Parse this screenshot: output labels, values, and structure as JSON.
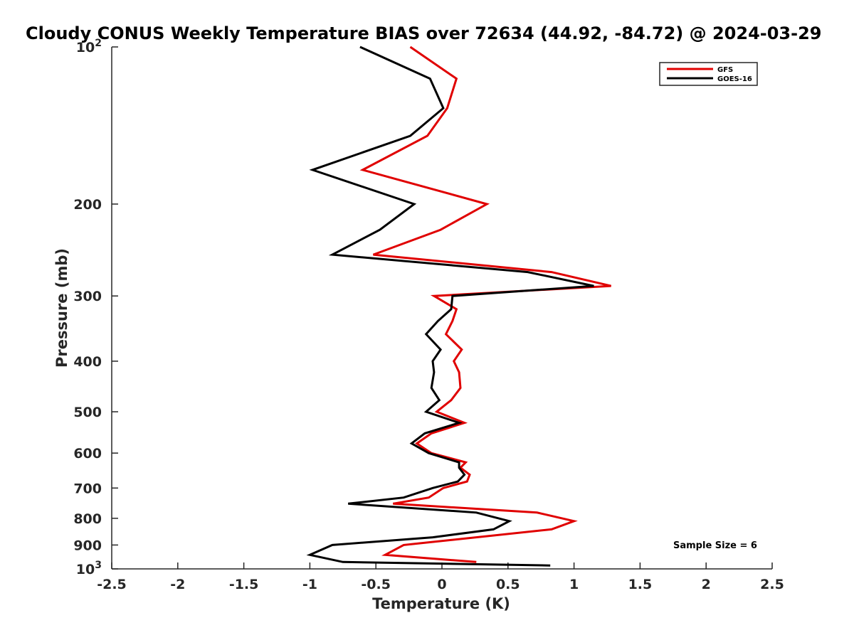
{
  "chart_data": {
    "type": "line",
    "title": "Cloudy CONUS Weekly Temperature BIAS over 72634 (44.92, -84.72) @ 2024-03-29",
    "xlabel": "Temperature (K)",
    "ylabel": "Pressure (mb)",
    "xlim": [
      -2.5,
      2.5
    ],
    "ylim": [
      100,
      1000
    ],
    "yscale": "log",
    "grid": false,
    "legend_position": "top-right",
    "x_ticks": [
      "-2.5",
      "-2",
      "-1.5",
      "-1",
      "-0.5",
      "0",
      "0.5",
      "1",
      "1.5",
      "2",
      "2.5"
    ],
    "y_ticks": [
      {
        "value": 100,
        "label": "10",
        "sup": "2"
      },
      {
        "value": 200,
        "label": "200"
      },
      {
        "value": 300,
        "label": "300"
      },
      {
        "value": 400,
        "label": "400"
      },
      {
        "value": 500,
        "label": "500"
      },
      {
        "value": 600,
        "label": "600"
      },
      {
        "value": 700,
        "label": "700"
      },
      {
        "value": 800,
        "label": "800"
      },
      {
        "value": 900,
        "label": "900"
      },
      {
        "value": 1000,
        "label": "10",
        "sup": "3"
      }
    ],
    "series": [
      {
        "name": "GFS",
        "color": "#e00000",
        "points": [
          [
            -0.24,
            100
          ],
          [
            0.11,
            115
          ],
          [
            0.04,
            131
          ],
          [
            -0.11,
            148
          ],
          [
            -0.6,
            172
          ],
          [
            0.34,
            200
          ],
          [
            -0.01,
            224
          ],
          [
            -0.52,
            250
          ],
          [
            0.83,
            270
          ],
          [
            1.28,
            287
          ],
          [
            -0.06,
            300
          ],
          [
            0.11,
            318
          ],
          [
            0.08,
            335
          ],
          [
            0.03,
            355
          ],
          [
            0.15,
            380
          ],
          [
            0.09,
            400
          ],
          [
            0.13,
            420
          ],
          [
            0.14,
            450
          ],
          [
            0.07,
            475
          ],
          [
            -0.04,
            500
          ],
          [
            0.17,
            525
          ],
          [
            -0.08,
            550
          ],
          [
            -0.19,
            575
          ],
          [
            -0.08,
            600
          ],
          [
            0.18,
            625
          ],
          [
            0.14,
            640
          ],
          [
            0.21,
            660
          ],
          [
            0.19,
            680
          ],
          [
            0.01,
            700
          ],
          [
            -0.1,
            730
          ],
          [
            -0.37,
            750
          ],
          [
            0.72,
            780
          ],
          [
            1.0,
            810
          ],
          [
            0.83,
            840
          ],
          [
            -0.29,
            900
          ],
          [
            -0.43,
            940
          ],
          [
            0.26,
            970
          ]
        ]
      },
      {
        "name": "GOES-16",
        "color": "#000000",
        "points": [
          [
            -0.62,
            100
          ],
          [
            -0.09,
            115
          ],
          [
            0.01,
            131
          ],
          [
            -0.24,
            148
          ],
          [
            -0.98,
            172
          ],
          [
            -0.21,
            200
          ],
          [
            -0.47,
            224
          ],
          [
            -0.83,
            250
          ],
          [
            0.65,
            270
          ],
          [
            1.15,
            287
          ],
          [
            0.08,
            300
          ],
          [
            0.07,
            318
          ],
          [
            -0.03,
            335
          ],
          [
            -0.12,
            355
          ],
          [
            -0.01,
            380
          ],
          [
            -0.07,
            400
          ],
          [
            -0.06,
            420
          ],
          [
            -0.08,
            450
          ],
          [
            -0.02,
            475
          ],
          [
            -0.12,
            500
          ],
          [
            0.13,
            525
          ],
          [
            -0.13,
            550
          ],
          [
            -0.23,
            575
          ],
          [
            -0.1,
            600
          ],
          [
            0.13,
            625
          ],
          [
            0.13,
            640
          ],
          [
            0.17,
            660
          ],
          [
            0.12,
            680
          ],
          [
            -0.07,
            700
          ],
          [
            -0.29,
            730
          ],
          [
            -0.71,
            750
          ],
          [
            0.26,
            780
          ],
          [
            0.51,
            810
          ],
          [
            0.39,
            840
          ],
          [
            -0.07,
            870
          ],
          [
            -0.83,
            900
          ],
          [
            -1.0,
            940
          ],
          [
            -0.75,
            970
          ],
          [
            0.82,
            985
          ]
        ]
      }
    ],
    "annotations": [
      "Sample Size = 6"
    ]
  }
}
